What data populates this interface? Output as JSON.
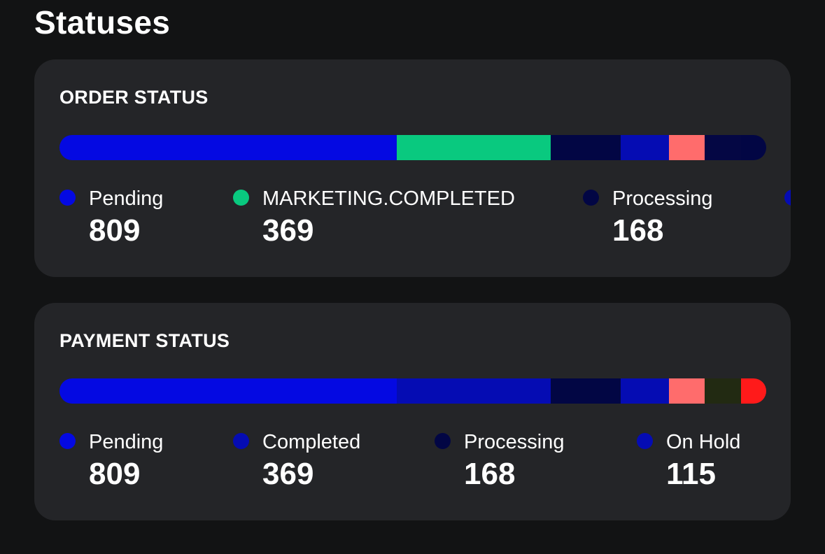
{
  "title": "Statuses",
  "order_status": {
    "title": "ORDER STATUS",
    "bar_segments": [
      {
        "color": "#0409e2",
        "share": 0.477
      },
      {
        "color": "#09c97f",
        "share": 0.218
      },
      {
        "color": "#020644",
        "share": 0.099
      },
      {
        "color": "#050cb3",
        "share": 0.068
      },
      {
        "color": "#ff6c6c",
        "share": 0.051
      },
      {
        "color": "#040744",
        "share": 0.051
      },
      {
        "color": "#020644",
        "share": 0.036
      }
    ],
    "legend": [
      {
        "label": "Pending",
        "value": "809",
        "color": "#0409e2"
      },
      {
        "label": "MARKETING.COMPLETED",
        "value": "369",
        "color": "#09c97f"
      },
      {
        "label": "Processing",
        "value": "168",
        "color": "#020644"
      },
      {
        "label": "",
        "value": "",
        "color": "#050cb3"
      }
    ]
  },
  "payment_status": {
    "title": "PAYMENT STATUS",
    "bar_segments": [
      {
        "color": "#0409e2",
        "share": 0.477
      },
      {
        "color": "#050cb3",
        "share": 0.218
      },
      {
        "color": "#020644",
        "share": 0.099
      },
      {
        "color": "#050cb3",
        "share": 0.068
      },
      {
        "color": "#ff6c6c",
        "share": 0.051
      },
      {
        "color": "#222a12",
        "share": 0.051
      },
      {
        "color": "#ff1a1a",
        "share": 0.036
      }
    ],
    "legend": [
      {
        "label": "Pending",
        "value": "809",
        "color": "#0409e2"
      },
      {
        "label": "Completed",
        "value": "369",
        "color": "#050cb3"
      },
      {
        "label": "Processing",
        "value": "168",
        "color": "#020644"
      },
      {
        "label": "On Hold",
        "value": "115",
        "color": "#050cb3"
      }
    ]
  }
}
